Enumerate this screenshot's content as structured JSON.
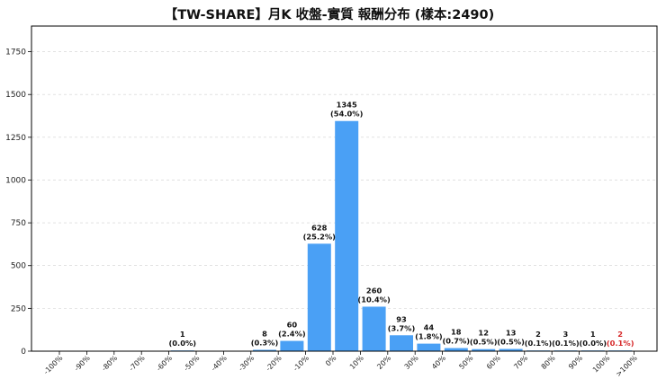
{
  "chart_data": {
    "type": "bar",
    "title": "【TW-SHARE】月K 收盤-實質 報酬分布 (樣本:2490)",
    "xlabel": "",
    "ylabel": "",
    "ylim": [
      0,
      1900
    ],
    "yticks": [
      0,
      250,
      500,
      750,
      1000,
      1250,
      1500,
      1750
    ],
    "grid": "horizontal-dashed",
    "bar_color": "#4aa0f5",
    "label_color": "#111111",
    "highlight_label_color": "#d62728",
    "ticks": [
      "-100%",
      "-90%",
      "-80%",
      "-70%",
      "-60%",
      "-50%",
      "-40%",
      "-30%",
      "-20%",
      "-10%",
      "0%",
      "10%",
      "20%",
      "30%",
      "40%",
      "50%",
      "60%",
      "70%",
      "80%",
      "90%",
      "100%",
      ">100%"
    ],
    "bins": [
      {
        "tick_index": 4,
        "value": 1,
        "count_label": "1",
        "pct_label": "(0.0%)"
      },
      {
        "tick_index": 7,
        "value": 8,
        "count_label": "8",
        "pct_label": "(0.3%)"
      },
      {
        "tick_index": 8,
        "value": 60,
        "count_label": "60",
        "pct_label": "(2.4%)"
      },
      {
        "tick_index": 9,
        "value": 628,
        "count_label": "628",
        "pct_label": "(25.2%)"
      },
      {
        "tick_index": 10,
        "value": 1345,
        "count_label": "1345",
        "pct_label": "(54.0%)"
      },
      {
        "tick_index": 11,
        "value": 260,
        "count_label": "260",
        "pct_label": "(10.4%)"
      },
      {
        "tick_index": 12,
        "value": 93,
        "count_label": "93",
        "pct_label": "(3.7%)"
      },
      {
        "tick_index": 13,
        "value": 44,
        "count_label": "44",
        "pct_label": "(1.8%)"
      },
      {
        "tick_index": 14,
        "value": 18,
        "count_label": "18",
        "pct_label": "(0.7%)"
      },
      {
        "tick_index": 15,
        "value": 12,
        "count_label": "12",
        "pct_label": "(0.5%)"
      },
      {
        "tick_index": 16,
        "value": 13,
        "count_label": "13",
        "pct_label": "(0.5%)"
      },
      {
        "tick_index": 17,
        "value": 2,
        "count_label": "2",
        "pct_label": "(0.1%)"
      },
      {
        "tick_index": 18,
        "value": 3,
        "count_label": "3",
        "pct_label": "(0.1%)"
      },
      {
        "tick_index": 19,
        "value": 1,
        "count_label": "1",
        "pct_label": "(0.0%)"
      },
      {
        "tick_index": 20,
        "value": 2,
        "count_label": "2",
        "pct_label": "(0.1%)",
        "highlight": true
      }
    ]
  }
}
